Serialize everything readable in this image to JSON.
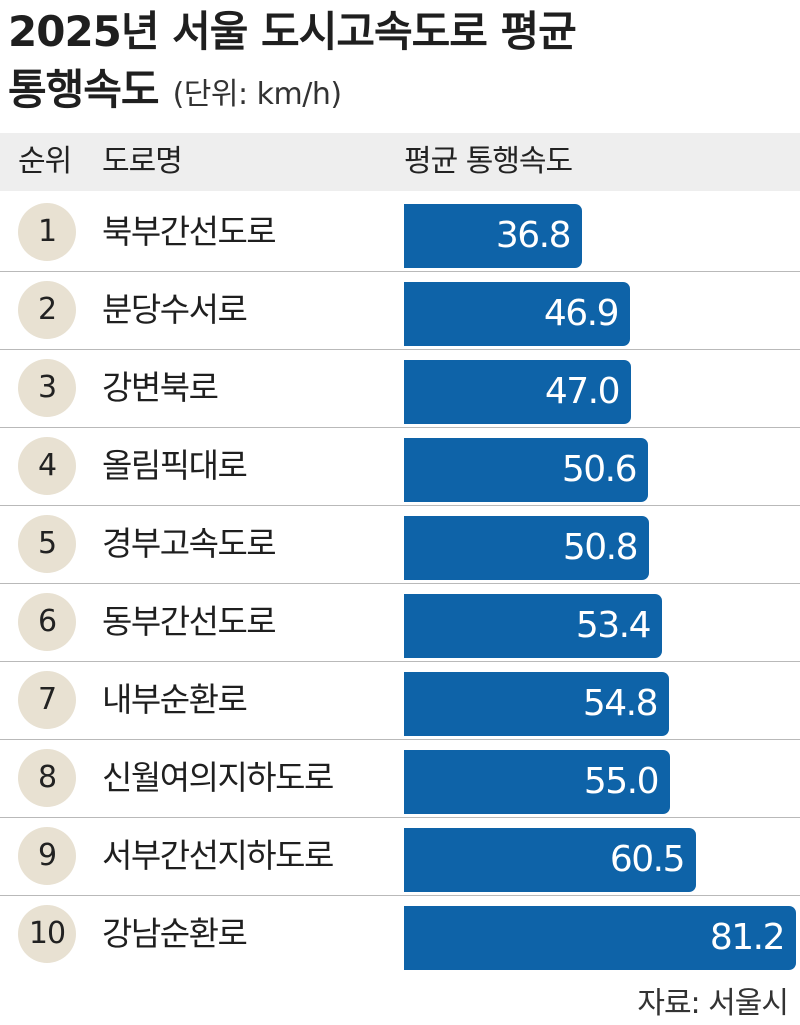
{
  "title_line1": "2025년 서울 도시고속도로 평균",
  "title_line2": "통행속도",
  "unit": "(단위: km/h)",
  "header": {
    "rank": "순위",
    "road": "도로명",
    "speed": "평균 통행속도"
  },
  "source": "자료: 서울시",
  "colors": {
    "bar": "#0e63a8",
    "rank_circle": "#e8e1d2",
    "header_bg": "#eeeeee"
  },
  "chart_data": {
    "type": "bar",
    "orientation": "horizontal",
    "title": "2025년 서울 도시고속도로 평균 통행속도",
    "unit": "km/h",
    "ranks": [
      "1",
      "2",
      "3",
      "4",
      "5",
      "6",
      "7",
      "8",
      "9",
      "10"
    ],
    "categories": [
      "북부간선도로",
      "분당수서로",
      "강변북로",
      "올림픽대로",
      "경부고속도로",
      "동부간선도로",
      "내부순환로",
      "신월여의지하도로",
      "서부간선지하도로",
      "강남순환로"
    ],
    "values": [
      36.8,
      46.9,
      47.0,
      50.6,
      50.8,
      53.4,
      54.8,
      55.0,
      60.5,
      81.2
    ],
    "value_labels": [
      "36.8",
      "46.9",
      "47.0",
      "50.6",
      "50.8",
      "53.4",
      "54.8",
      "55.0",
      "60.5",
      "81.2"
    ],
    "xlim": [
      0,
      81.2
    ]
  }
}
